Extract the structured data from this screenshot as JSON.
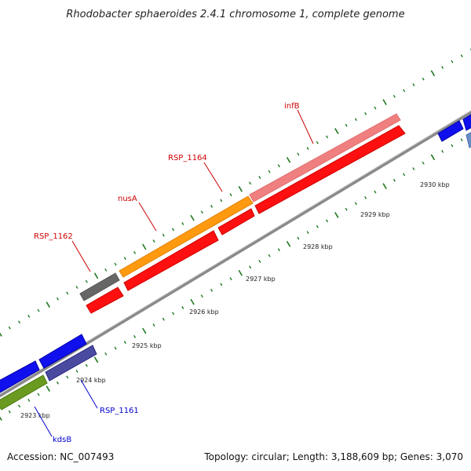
{
  "title": "Rhodobacter sphaeroides 2.4.1 chromosome 1, complete genome",
  "footer": {
    "accession": "Accession: NC_007493",
    "summary": "Topology: circular; Length: 3,188,609 bp; Genes: 3,070"
  },
  "ticks": [
    "2923 kbp",
    "2924 kbp",
    "2925 kbp",
    "2926 kbp",
    "2927 kbp",
    "2928 kbp",
    "2929 kbp",
    "2930 kbp"
  ],
  "labels": {
    "infB": "infB",
    "rsp1164": "RSP_1164",
    "nusA": "nusA",
    "rsp1162": "RSP_1162",
    "rsp1161": "RSP_1161",
    "kdsB": "kdsB"
  },
  "colors": {
    "label_top": "#cc0000",
    "label_bottom": "#0000cc",
    "backbone": "#888888",
    "tick": "#1f7a1f"
  }
}
